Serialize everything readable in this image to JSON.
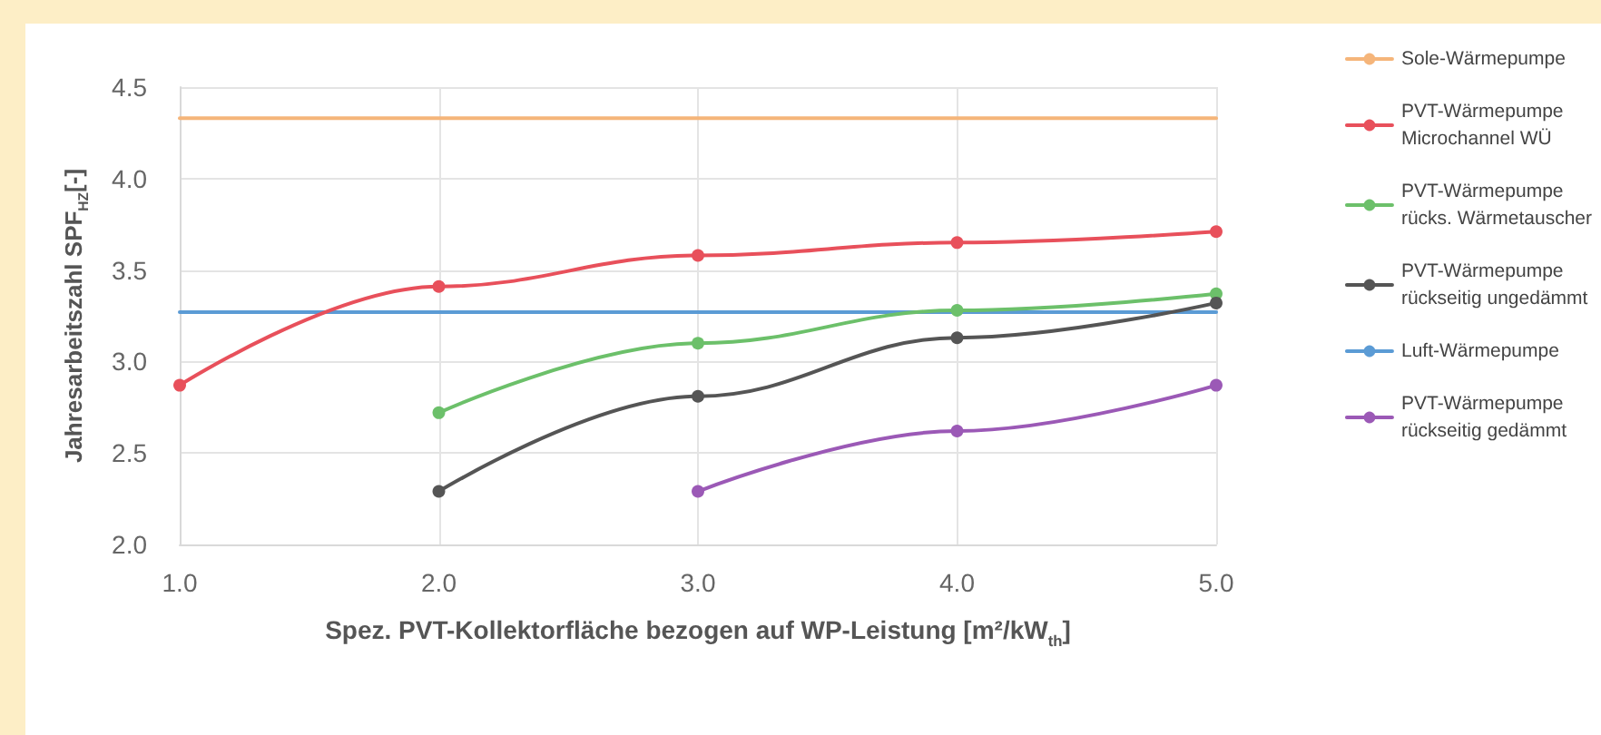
{
  "chart_data": {
    "type": "line",
    "xlabel": "Spez. PVT-Kollektorfläche bezogen auf WP-Leistung [m²/kW$_{th}$]",
    "ylabel": "Jahresarbeitszahl SPF$_{HZ}$[-]",
    "x": [
      1,
      2,
      3,
      4,
      5
    ],
    "series": [
      {
        "name": "Sole-Wärmepumpe",
        "color": "#f5b57a",
        "marker": "none",
        "values": [
          4.33,
          4.33,
          4.33,
          4.33,
          4.33
        ]
      },
      {
        "name": "PVT-Wärmepumpe\nMicrochannel WÜ",
        "color": "#e8505b",
        "values": [
          2.87,
          3.41,
          3.58,
          3.65,
          3.71
        ]
      },
      {
        "name": "PVT-Wärmepumpe\nrücks. Wärmetauscher",
        "color": "#6cc06a",
        "values": [
          null,
          2.72,
          3.1,
          3.28,
          3.37
        ]
      },
      {
        "name": "PVT-Wärmepumpe\nrückseitig ungedämmt",
        "color": "#555555",
        "values": [
          null,
          2.29,
          2.81,
          3.13,
          3.32
        ]
      },
      {
        "name": "Luft-Wärmepumpe",
        "color": "#5b9bd5",
        "marker": "none",
        "values": [
          3.27,
          3.27,
          3.27,
          3.27,
          3.27
        ]
      },
      {
        "name": "PVT-Wärmepumpe\nrückseitig gedämmt",
        "color": "#9b59b6",
        "values": [
          null,
          null,
          2.29,
          2.62,
          2.87
        ]
      }
    ],
    "xlim": [
      1,
      5
    ],
    "xticks": [
      {
        "value": 1,
        "label": "1.0"
      },
      {
        "value": 2,
        "label": "2.0"
      },
      {
        "value": 3,
        "label": "3.0"
      },
      {
        "value": 4,
        "label": "4.0"
      },
      {
        "value": 5,
        "label": "5.0"
      }
    ],
    "ylim": [
      2,
      4.5
    ],
    "yticks": [
      {
        "value": 2,
        "label": "2.0"
      },
      {
        "value": 2.5,
        "label": "2.5"
      },
      {
        "value": 3,
        "label": "3.0"
      },
      {
        "value": 3.5,
        "label": "3.5"
      },
      {
        "value": 4,
        "label": "4.0"
      },
      {
        "value": 4.5,
        "label": "4.5"
      }
    ],
    "grid": true,
    "legend": "right",
    "marker": "circle",
    "line_style": "solid"
  }
}
